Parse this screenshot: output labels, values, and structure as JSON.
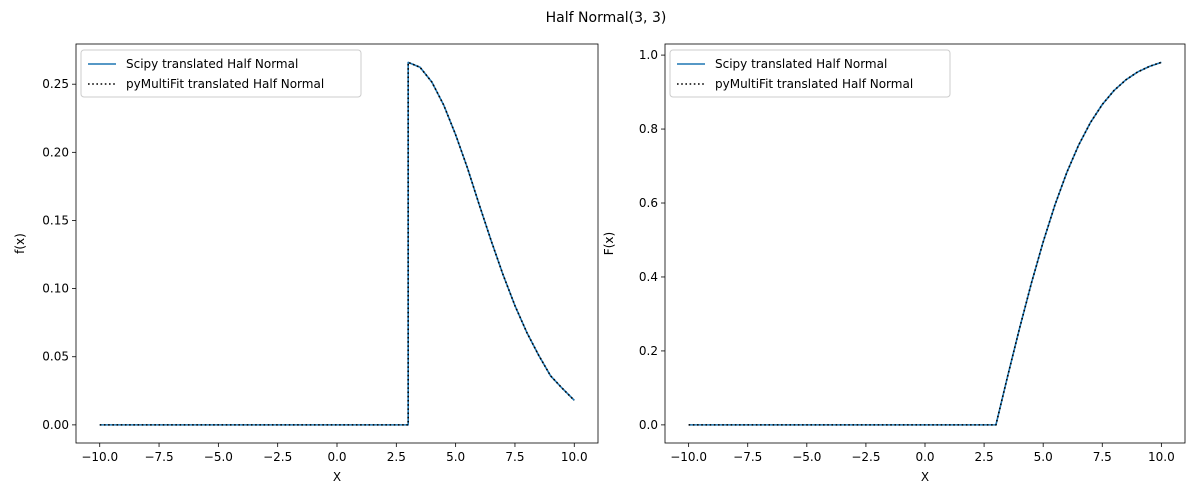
{
  "figure": {
    "suptitle": "Half Normal(3, 3)"
  },
  "chart_data": [
    {
      "type": "line",
      "title": "",
      "xlabel": "X",
      "ylabel": "f(x)",
      "xlim": [
        -11,
        11
      ],
      "ylim": [
        -0.0133,
        0.2795
      ],
      "xticks": [
        "−10.0",
        "−7.5",
        "−5.0",
        "−2.5",
        "0.0",
        "2.5",
        "5.0",
        "7.5",
        "10.0"
      ],
      "yticks": [
        "0.00",
        "0.05",
        "0.10",
        "0.15",
        "0.20",
        "0.25"
      ],
      "legend_position": "upper-left",
      "series": [
        {
          "name": "Scipy translated Half Normal",
          "color": "#1f77b4",
          "style": "solid",
          "x": [
            -10,
            3,
            3,
            3.5,
            4,
            4.5,
            5,
            5.5,
            6,
            6.5,
            7,
            7.5,
            8,
            8.5,
            9,
            9.5,
            10
          ],
          "y": [
            0,
            0,
            0.266,
            0.2624,
            0.2515,
            0.2346,
            0.2129,
            0.1884,
            0.1613,
            0.135,
            0.1101,
            0.0875,
            0.0678,
            0.0511,
            0.036,
            0.0267,
            0.018
          ]
        },
        {
          "name": "pyMultiFit translated Half Normal",
          "color": "#000000",
          "style": "dotted",
          "x": [
            -10,
            3,
            3,
            3.5,
            4,
            4.5,
            5,
            5.5,
            6,
            6.5,
            7,
            7.5,
            8,
            8.5,
            9,
            9.5,
            10
          ],
          "y": [
            0,
            0,
            0.266,
            0.2624,
            0.2515,
            0.2346,
            0.2129,
            0.1884,
            0.1613,
            0.135,
            0.1101,
            0.0875,
            0.0678,
            0.0511,
            0.036,
            0.0267,
            0.018
          ]
        }
      ]
    },
    {
      "type": "line",
      "title": "",
      "xlabel": "X",
      "ylabel": "F(x)",
      "xlim": [
        -11,
        11
      ],
      "ylim": [
        -0.049,
        1.03
      ],
      "xticks": [
        "−10.0",
        "−7.5",
        "−5.0",
        "−2.5",
        "0.0",
        "2.5",
        "5.0",
        "7.5",
        "10.0"
      ],
      "yticks": [
        "0.0",
        "0.2",
        "0.4",
        "0.6",
        "0.8",
        "1.0"
      ],
      "legend_position": "upper-left",
      "series": [
        {
          "name": "Scipy translated Half Normal",
          "color": "#1f77b4",
          "style": "solid",
          "x": [
            -10,
            3,
            3.5,
            4,
            4.5,
            5,
            5.5,
            6,
            6.5,
            7,
            7.5,
            8,
            8.5,
            9,
            9.5,
            10
          ],
          "y": [
            0,
            0,
            0.1324,
            0.2611,
            0.3829,
            0.495,
            0.5953,
            0.6827,
            0.7566,
            0.8176,
            0.8664,
            0.9044,
            0.9332,
            0.9545,
            0.9696,
            0.9804
          ]
        },
        {
          "name": "pyMultiFit translated Half Normal",
          "color": "#000000",
          "style": "dotted",
          "x": [
            -10,
            3,
            3.5,
            4,
            4.5,
            5,
            5.5,
            6,
            6.5,
            7,
            7.5,
            8,
            8.5,
            9,
            9.5,
            10
          ],
          "y": [
            0,
            0,
            0.1324,
            0.2611,
            0.3829,
            0.495,
            0.5953,
            0.6827,
            0.7566,
            0.8176,
            0.8664,
            0.9044,
            0.9332,
            0.9545,
            0.9696,
            0.9804
          ]
        }
      ]
    }
  ]
}
